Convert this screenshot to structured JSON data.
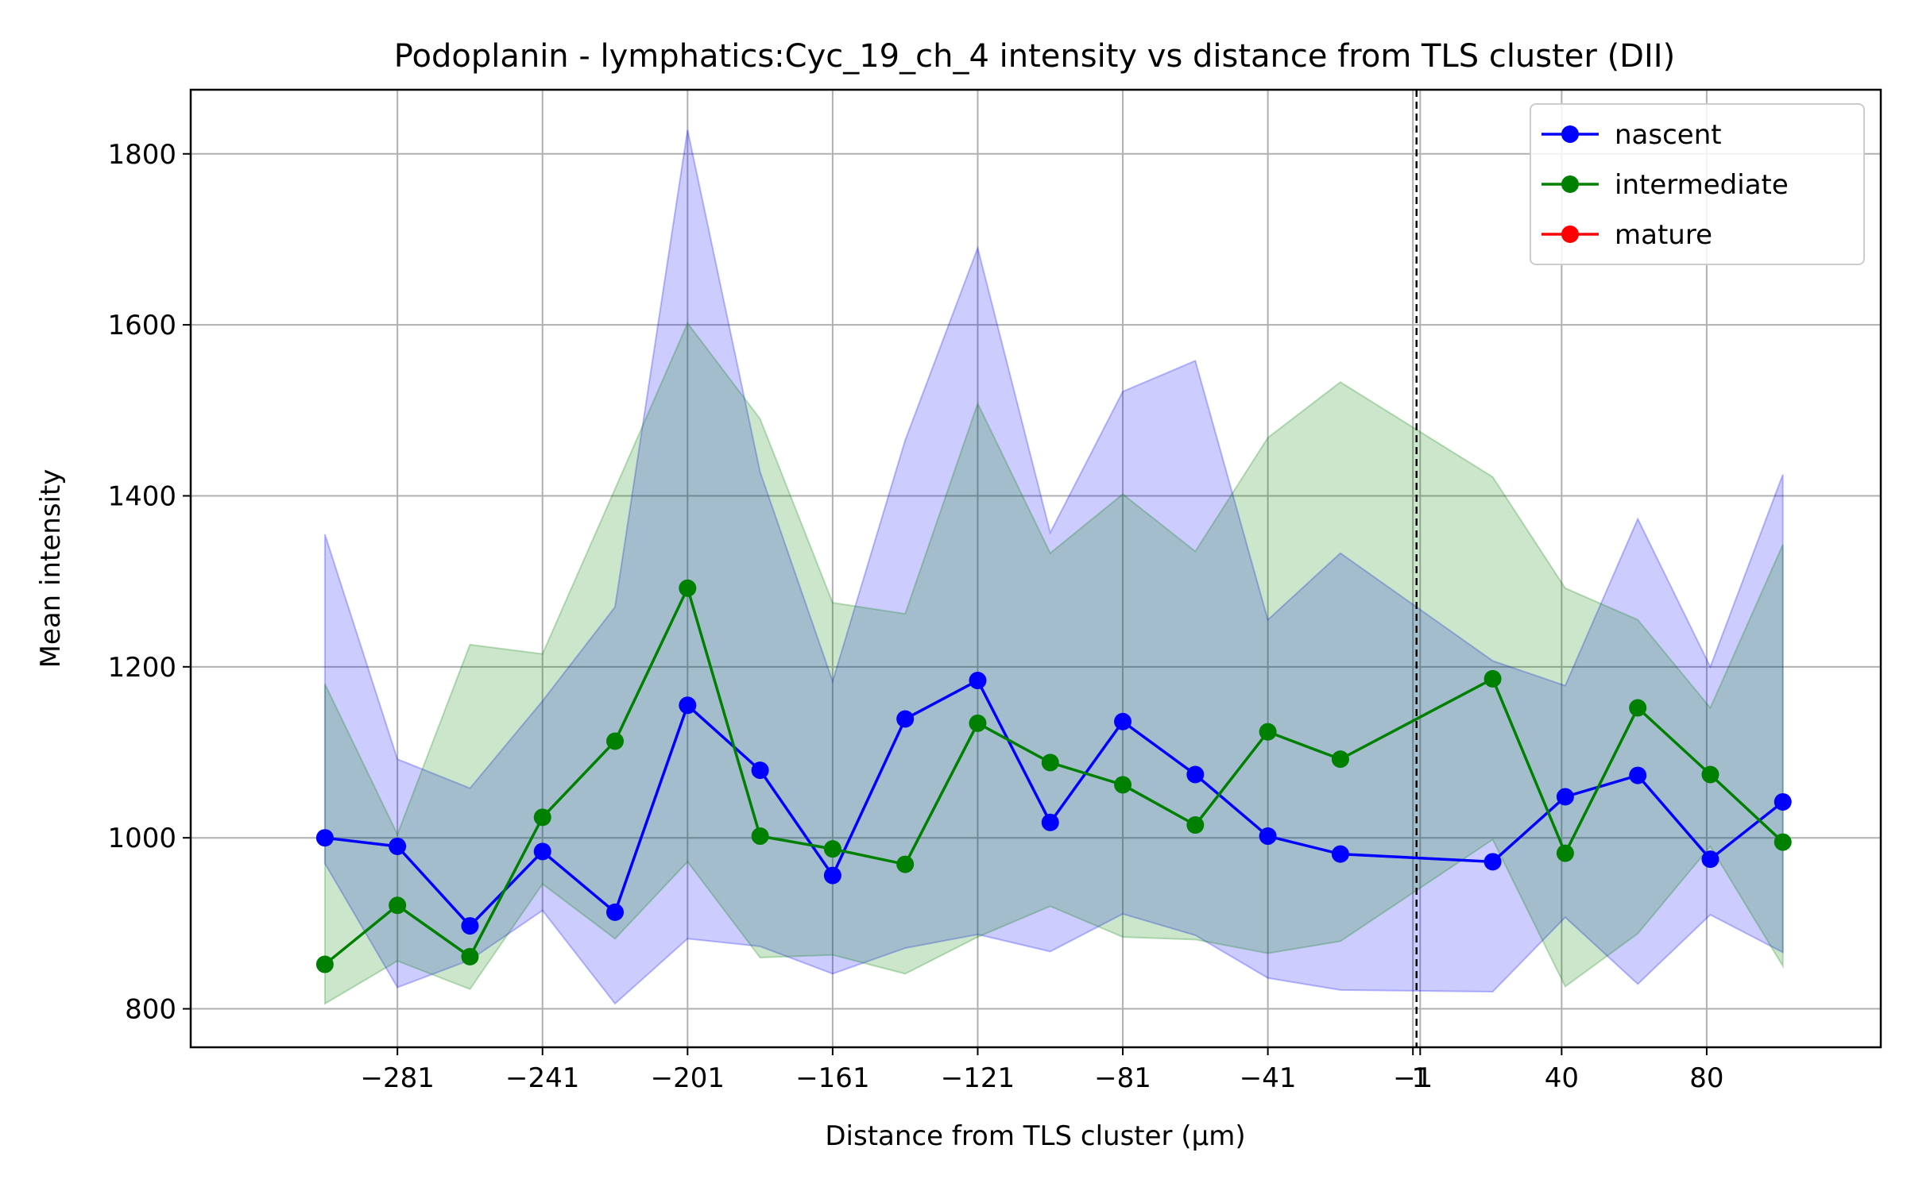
{
  "chart_data": {
    "type": "line",
    "title": "Podoplanin - lymphatics:Cyc_19_ch_4 intensity vs distance from TLS cluster (DII)",
    "xlabel": "Distance from TLS cluster (μm)",
    "ylabel": "Mean intensity",
    "xlim": [
      -338,
      128
    ],
    "ylim": [
      755,
      1875
    ],
    "xticks": [
      -281,
      -241,
      -201,
      -161,
      -121,
      -81,
      -41,
      -1,
      1,
      40,
      80
    ],
    "xtick_labels": [
      "−281",
      "−241",
      "−201",
      "−161",
      "−121",
      "−81",
      "−41",
      "−1",
      "1",
      "40",
      "80"
    ],
    "yticks": [
      800,
      1000,
      1200,
      1400,
      1600,
      1800
    ],
    "ytick_labels": [
      "800",
      "1000",
      "1200",
      "1400",
      "1600",
      "1800"
    ],
    "grid": true,
    "legend_position": "top-right",
    "reference_line": {
      "x": 0,
      "style": "dashed",
      "color": "#000000"
    },
    "series": [
      {
        "name": "nascent",
        "color": "#0000ff",
        "x": [
          -301,
          -281,
          -261,
          -241,
          -221,
          -201,
          -181,
          -161,
          -141,
          -121,
          -101,
          -81,
          -61,
          -41,
          -21,
          21,
          41,
          61,
          81,
          101
        ],
        "values": [
          1000,
          990,
          897,
          984,
          913,
          1155,
          1079,
          956,
          1139,
          1184,
          1018,
          1136,
          1074,
          1002,
          981,
          972,
          1048,
          1073,
          975,
          1042
        ],
        "band_upper": [
          1355,
          1092,
          1058,
          1160,
          1270,
          1828,
          1428,
          1183,
          1465,
          1690,
          1357,
          1522,
          1558,
          1255,
          1333,
          1207,
          1178,
          1373,
          1200,
          1425
        ],
        "band_lower": [
          970,
          825,
          857,
          915,
          806,
          882,
          873,
          841,
          871,
          887,
          867,
          911,
          886,
          836,
          822,
          820,
          907,
          829,
          910,
          866
        ]
      },
      {
        "name": "intermediate",
        "color": "#008000",
        "x": [
          -301,
          -281,
          -261,
          -241,
          -221,
          -201,
          -181,
          -161,
          -141,
          -121,
          -101,
          -81,
          -61,
          -41,
          -21,
          21,
          41,
          61,
          81,
          101
        ],
        "values": [
          852,
          921,
          861,
          1024,
          1113,
          1292,
          1002,
          987,
          969,
          1134,
          1088,
          1062,
          1015,
          1124,
          1092,
          1186,
          982,
          1152,
          1074,
          995
        ],
        "band_upper": [
          1180,
          1004,
          1226,
          1215,
          1408,
          1602,
          1490,
          1275,
          1262,
          1508,
          1333,
          1402,
          1335,
          1468,
          1533,
          1422,
          1292,
          1255,
          1152,
          1343
        ],
        "band_lower": [
          806,
          856,
          823,
          946,
          882,
          972,
          860,
          863,
          841,
          884,
          920,
          884,
          881,
          865,
          879,
          998,
          826,
          888,
          990,
          850
        ]
      },
      {
        "name": "mature",
        "color": "#ff0000",
        "x": [],
        "values": []
      }
    ]
  }
}
